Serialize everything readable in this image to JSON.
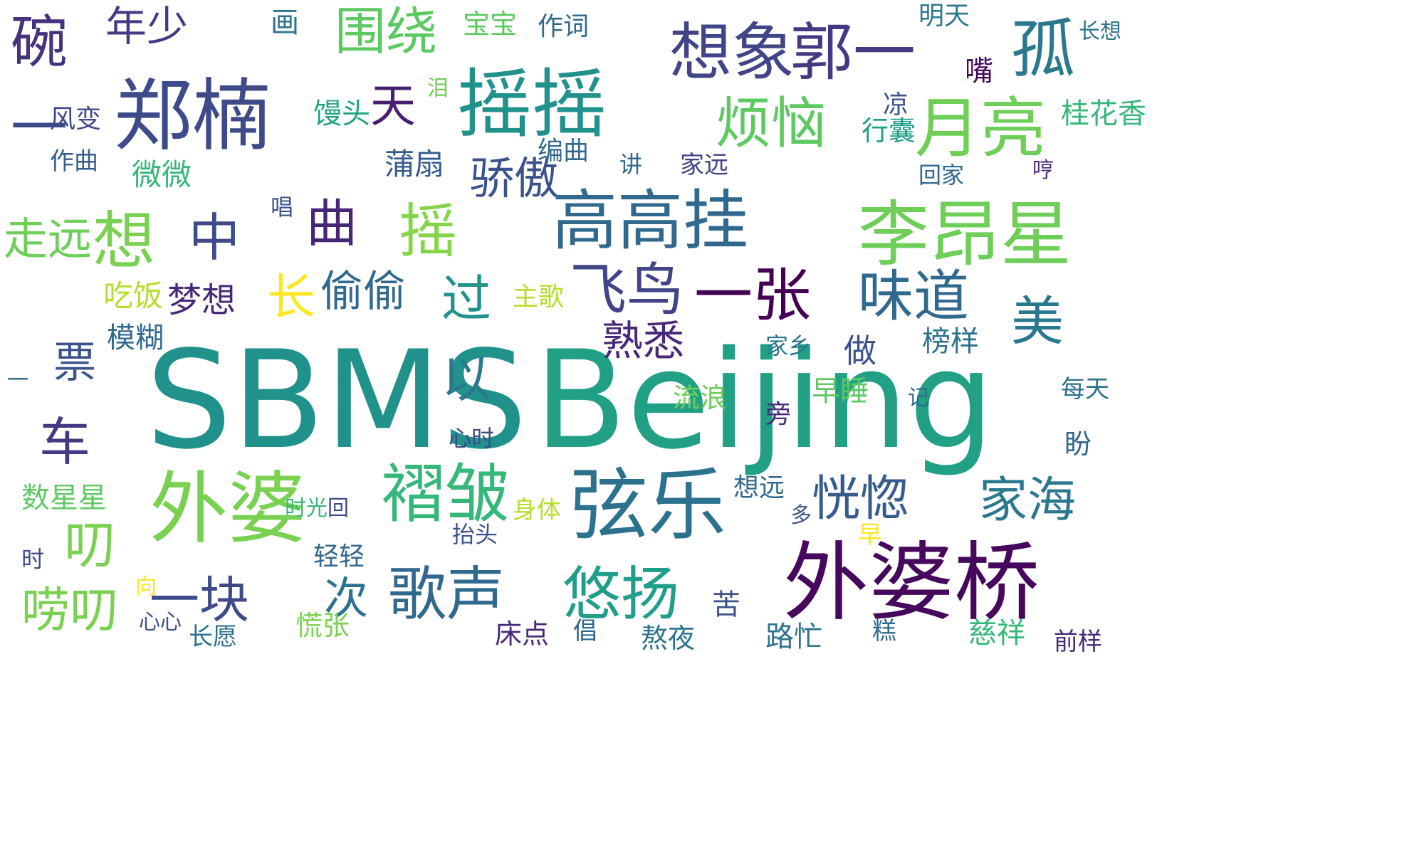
{
  "word_cloud": {
    "words": [
      {
        "text": "SBMS",
        "color": "#21918c"
      },
      {
        "text": "Beijing",
        "color": "#22a085"
      },
      {
        "text": "外婆桥",
        "color": "#46085c"
      },
      {
        "text": "外婆",
        "color": "#7ad151"
      },
      {
        "text": "郑楠",
        "color": "#3e4a89"
      },
      {
        "text": "摇摇",
        "color": "#21918c"
      },
      {
        "text": "想象",
        "color": "#414487"
      },
      {
        "text": "郭一",
        "color": "#443983"
      },
      {
        "text": "孤",
        "color": "#2a788e"
      },
      {
        "text": "围绕",
        "color": "#5ec962"
      },
      {
        "text": "李昂星",
        "color": "#6ece58"
      },
      {
        "text": "高高挂",
        "color": "#31688e"
      },
      {
        "text": "弦乐",
        "color": "#2c728e"
      },
      {
        "text": "悠扬",
        "color": "#1f9e89"
      },
      {
        "text": "歌声",
        "color": "#31688e"
      },
      {
        "text": "一块",
        "color": "#3e4a89"
      },
      {
        "text": "次",
        "color": "#2c728e"
      },
      {
        "text": "褶皱",
        "color": "#35b779"
      },
      {
        "text": "恍惚",
        "color": "#365c8d"
      },
      {
        "text": "家海",
        "color": "#2a788e"
      },
      {
        "text": "一张",
        "color": "#440154"
      },
      {
        "text": "味道",
        "color": "#31688e"
      },
      {
        "text": "美",
        "color": "#2a788e"
      },
      {
        "text": "飞鸟",
        "color": "#414487"
      },
      {
        "text": "月亮",
        "color": "#6ece58"
      },
      {
        "text": "烦恼",
        "color": "#5ec962"
      },
      {
        "text": "骄傲",
        "color": "#3b528b"
      },
      {
        "text": "摇",
        "color": "#86d549"
      },
      {
        "text": "曲",
        "color": "#482677"
      },
      {
        "text": "中",
        "color": "#3e4a89"
      },
      {
        "text": "想",
        "color": "#7ad151"
      },
      {
        "text": "走远",
        "color": "#6ece58"
      },
      {
        "text": "长",
        "color": "#fde725"
      },
      {
        "text": "偷偷",
        "color": "#31688e"
      },
      {
        "text": "梦想",
        "color": "#482878"
      },
      {
        "text": "吃饭",
        "color": "#b5de2b"
      },
      {
        "text": "熟悉",
        "color": "#482878"
      },
      {
        "text": "过",
        "color": "#21918c"
      },
      {
        "text": "以",
        "color": "#2a788e"
      },
      {
        "text": "天",
        "color": "#481f70"
      },
      {
        "text": "碗",
        "color": "#46337e"
      },
      {
        "text": "一",
        "color": "#3e4a89"
      },
      {
        "text": "年少",
        "color": "#443a83"
      },
      {
        "text": "画",
        "color": "#2c728e"
      },
      {
        "text": "宝宝",
        "color": "#5ec962"
      },
      {
        "text": "作词",
        "color": "#31688e"
      },
      {
        "text": "明天",
        "color": "#2a788e"
      },
      {
        "text": "长想",
        "color": "#2c728e"
      },
      {
        "text": "嘴",
        "color": "#46085c"
      },
      {
        "text": "桂花香",
        "color": "#35b779"
      },
      {
        "text": "行囊",
        "color": "#1f9e89"
      },
      {
        "text": "凉",
        "color": "#3b528b"
      },
      {
        "text": "回家",
        "color": "#31688e"
      },
      {
        "text": "家远",
        "color": "#414487"
      },
      {
        "text": "讲",
        "color": "#31688e"
      },
      {
        "text": "编曲",
        "color": "#31688e"
      },
      {
        "text": "蒲扇",
        "color": "#365c8d"
      },
      {
        "text": "馒头",
        "color": "#20a386"
      },
      {
        "text": "泪",
        "color": "#6ece58"
      },
      {
        "text": "风变",
        "color": "#3e4a89"
      },
      {
        "text": "作曲",
        "color": "#365c8d"
      },
      {
        "text": "微微",
        "color": "#35b779"
      },
      {
        "text": "唱",
        "color": "#3b528b"
      },
      {
        "text": "票",
        "color": "#3b528b"
      },
      {
        "text": "车",
        "color": "#443983"
      },
      {
        "text": "叨",
        "color": "#7ad151"
      },
      {
        "text": "唠叨",
        "color": "#7ad151"
      },
      {
        "text": "模糊",
        "color": "#31688e"
      },
      {
        "text": "主歌",
        "color": "#b5de2b"
      },
      {
        "text": "家乡",
        "color": "#2c728e"
      },
      {
        "text": "流浪",
        "color": "#6ece58"
      },
      {
        "text": "早睡",
        "color": "#5ec962"
      },
      {
        "text": "做",
        "color": "#3b528b"
      },
      {
        "text": "榜样",
        "color": "#2c728e"
      },
      {
        "text": "旁",
        "color": "#482878"
      },
      {
        "text": "记",
        "color": "#31688e"
      },
      {
        "text": "每天",
        "color": "#2c728e"
      },
      {
        "text": "盼",
        "color": "#31688e"
      },
      {
        "text": "身体",
        "color": "#b5de2b"
      },
      {
        "text": "想远",
        "color": "#31688e"
      },
      {
        "text": "抬头",
        "color": "#3b528b"
      },
      {
        "text": "早",
        "color": "#fde725"
      },
      {
        "text": "轻轻",
        "color": "#31688e"
      },
      {
        "text": "数星星",
        "color": "#5ec962"
      },
      {
        "text": "多",
        "color": "#3b528b"
      },
      {
        "text": "慈祥",
        "color": "#35b779"
      },
      {
        "text": "前样",
        "color": "#482878"
      },
      {
        "text": "糕",
        "color": "#31688e"
      },
      {
        "text": "路忙",
        "color": "#2c728e"
      },
      {
        "text": "熬夜",
        "color": "#2c728e"
      },
      {
        "text": "床点",
        "color": "#482878"
      },
      {
        "text": "慌张",
        "color": "#7ad151"
      },
      {
        "text": "长愿",
        "color": "#2c728e"
      },
      {
        "text": "苦",
        "color": "#3b528b"
      },
      {
        "text": "时",
        "color": "#3e4a89"
      },
      {
        "text": "向",
        "color": "#fde725"
      },
      {
        "text": "一",
        "color": "#31688e"
      },
      {
        "text": "倡",
        "color": "#31688e"
      },
      {
        "text": "心心",
        "color": "#3b528b"
      },
      {
        "text": "时光",
        "color": "#35b779"
      },
      {
        "text": "回",
        "color": "#3e4a89"
      },
      {
        "text": "心时",
        "color": "#3e4a89"
      },
      {
        "text": "哼",
        "color": "#482878"
      }
    ]
  }
}
